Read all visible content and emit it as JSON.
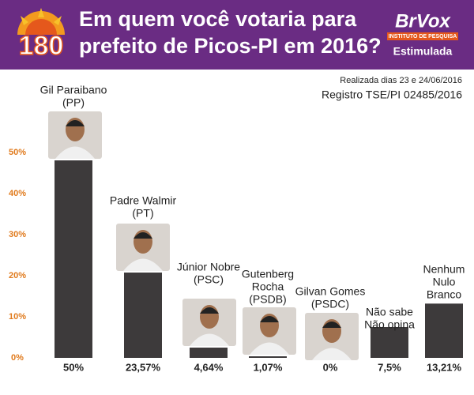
{
  "header": {
    "logo": "180",
    "title_lines": [
      "Em quem você votaria para",
      "prefeito de Picos-PI em 2016?"
    ],
    "brand": "BrVox",
    "brand_sub": "INSTITUTO DE PESQUISA",
    "subtitle": "Estimulada"
  },
  "notes": [
    "Realizada dias 23 e 24/06/2016",
    "Registro TSE/PI 02485/2016"
  ],
  "chart_data": {
    "type": "bar",
    "categories": [
      [
        "Gil Paraibano",
        "(PP)"
      ],
      [
        "Padre Walmir",
        "(PT)"
      ],
      [
        "Júnior Nobre",
        "(PSC)"
      ],
      [
        "Gutenberg",
        "Rocha",
        "(PSDB)"
      ],
      [
        "Gilvan Gomes",
        "(PSDC)"
      ],
      [
        "Não sabe",
        "Não opina"
      ],
      [
        "Nenhum",
        "Nulo",
        "Branco"
      ]
    ],
    "values": [
      50,
      23.57,
      4.64,
      1.07,
      0,
      7.5,
      13.21
    ],
    "value_labels": [
      "50%",
      "23,57%",
      "4,64%",
      "1,07%",
      "0%",
      "7,5%",
      "13,21%"
    ],
    "color": "#3d3a3b",
    "ylim": [
      0,
      50
    ],
    "yticks": [
      {
        "value": 0,
        "label": "0%"
      },
      {
        "value": 10,
        "label": "10%"
      },
      {
        "value": 20,
        "label": "20%"
      },
      {
        "value": 30,
        "label": "30%"
      },
      {
        "value": 40,
        "label": "40%"
      },
      {
        "value": 50,
        "label": "50%"
      }
    ]
  }
}
